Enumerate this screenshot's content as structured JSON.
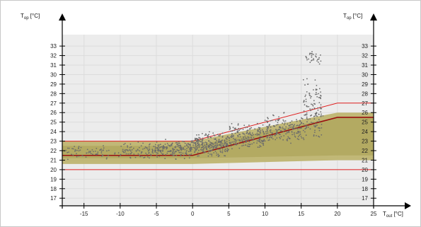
{
  "chart_data": {
    "type": "scatter",
    "y_axis_title": {
      "main": "T",
      "sub": "op",
      "unit": " [°C]"
    },
    "x_axis_title": {
      "main": "T",
      "sub": "out",
      "unit": " [°C]"
    },
    "xlim": [
      -18,
      25
    ],
    "ylim": [
      16.2,
      34.2
    ],
    "x_ticks": [
      -15,
      -10,
      -5,
      0,
      5,
      10,
      15,
      20,
      25
    ],
    "y_ticks": [
      17,
      18,
      19,
      20,
      21,
      22,
      23,
      24,
      25,
      26,
      27,
      28,
      29,
      30,
      31,
      32,
      33
    ],
    "grid": true,
    "comfort_band_outer": {
      "upper": [
        [
          -18,
          23
        ],
        [
          0,
          23
        ],
        [
          20,
          26
        ],
        [
          25,
          26
        ]
      ],
      "lower": [
        [
          -18,
          20.6
        ],
        [
          0,
          20.6
        ],
        [
          20,
          21
        ],
        [
          25,
          21
        ]
      ]
    },
    "comfort_band_inner": {
      "upper": [
        [
          -18,
          22.5
        ],
        [
          0,
          22.5
        ],
        [
          20,
          25.5
        ],
        [
          25,
          25.5
        ]
      ],
      "lower": [
        [
          -18,
          21.2
        ],
        [
          0,
          21.2
        ],
        [
          20,
          21.5
        ],
        [
          25,
          21.5
        ]
      ]
    },
    "limit_lines": {
      "upper_red": [
        [
          -18,
          23
        ],
        [
          0,
          23
        ],
        [
          20,
          27
        ],
        [
          25,
          27
        ]
      ],
      "lower_red": [
        [
          -18,
          20
        ],
        [
          25,
          20
        ]
      ],
      "central_darkred": [
        [
          -18,
          21.5
        ],
        [
          0,
          21.5
        ],
        [
          20,
          25.5
        ],
        [
          25,
          25.5
        ]
      ]
    },
    "scatter_clusters": [
      {
        "x_range": [
          -18,
          -10
        ],
        "y_center": 21.8,
        "y_spread": 0.6,
        "count": 70
      },
      {
        "x_range": [
          -10,
          -5
        ],
        "y_center": 22.0,
        "y_spread": 0.7,
        "count": 90
      },
      {
        "x_range": [
          -5,
          0
        ],
        "y_center": 22.2,
        "y_spread": 0.8,
        "count": 180
      },
      {
        "x_range": [
          0,
          5
        ],
        "y_center": 22.6,
        "y_spread": 1.0,
        "count": 260
      },
      {
        "x_range": [
          5,
          10
        ],
        "y_center": 23.4,
        "y_spread": 1.2,
        "count": 200
      },
      {
        "x_range": [
          10,
          15
        ],
        "y_center": 24.2,
        "y_spread": 1.3,
        "count": 170
      },
      {
        "x_range": [
          15,
          18
        ],
        "y_center": 25.0,
        "y_spread": 1.6,
        "count": 80
      },
      {
        "x_range": [
          15.3,
          17.8
        ],
        "y_center": 27.8,
        "y_spread": 2.5,
        "count": 60
      },
      {
        "x_range": [
          15.5,
          17.8
        ],
        "y_center": 31.8,
        "y_spread": 0.6,
        "count": 30
      }
    ],
    "colors": {
      "band_outer": "#bcb26a",
      "band_inner": "#aaa055",
      "plot_bg": "#ececec",
      "grid": "#dcdcdc",
      "red_line": "#e02020",
      "dark_red_line": "#9a1010",
      "dots": "#6c6c6c"
    }
  }
}
